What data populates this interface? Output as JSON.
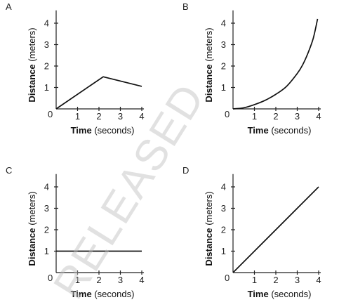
{
  "chart_data": [
    {
      "type": "line",
      "panel": "A",
      "xlabel_main": "Time",
      "xlabel_unit": "(seconds)",
      "ylabel_main": "Distance",
      "ylabel_unit": "(meters)",
      "xlim": [
        0,
        4
      ],
      "ylim": [
        0,
        4
      ],
      "x_ticks": [
        "1",
        "2",
        "3",
        "4"
      ],
      "y_ticks": [
        "1",
        "2",
        "3",
        "4"
      ],
      "origin_label": "0",
      "grid": false,
      "series": [
        {
          "x": [
            0,
            2.2,
            4
          ],
          "y": [
            0,
            1.5,
            1.05
          ]
        }
      ]
    },
    {
      "type": "line",
      "panel": "B",
      "xlabel_main": "Time",
      "xlabel_unit": "(seconds)",
      "ylabel_main": "Distance",
      "ylabel_unit": "(meters)",
      "xlim": [
        0,
        4
      ],
      "ylim": [
        0,
        4
      ],
      "x_ticks": [
        "1",
        "2",
        "3",
        "4"
      ],
      "y_ticks": [
        "1",
        "2",
        "3",
        "4"
      ],
      "origin_label": "0",
      "grid": false,
      "series": [
        {
          "x": [
            0,
            0.5,
            1,
            1.5,
            2,
            2.5,
            3,
            3.25,
            3.5,
            3.75,
            3.95
          ],
          "y": [
            0,
            0.05,
            0.2,
            0.4,
            0.68,
            1.05,
            1.65,
            2.05,
            2.6,
            3.3,
            4.2
          ]
        }
      ]
    },
    {
      "type": "line",
      "panel": "C",
      "xlabel_main": "Time",
      "xlabel_unit": "(seconds)",
      "ylabel_main": "Distance",
      "ylabel_unit": "(meters)",
      "xlim": [
        0,
        4
      ],
      "ylim": [
        0,
        4
      ],
      "x_ticks": [
        "1",
        "2",
        "3",
        "4"
      ],
      "y_ticks": [
        "1",
        "2",
        "3",
        "4"
      ],
      "origin_label": "0",
      "grid": false,
      "series": [
        {
          "x": [
            0,
            4
          ],
          "y": [
            1,
            1
          ]
        }
      ]
    },
    {
      "type": "line",
      "panel": "D",
      "xlabel_main": "Time",
      "xlabel_unit": "(seconds)",
      "ylabel_main": "Distance",
      "ylabel_unit": "(meters)",
      "xlim": [
        0,
        4
      ],
      "ylim": [
        0,
        4
      ],
      "x_ticks": [
        "1",
        "2",
        "3",
        "4"
      ],
      "y_ticks": [
        "1",
        "2",
        "3",
        "4"
      ],
      "origin_label": "0",
      "grid": false,
      "series": [
        {
          "x": [
            0,
            4
          ],
          "y": [
            0,
            4
          ]
        }
      ]
    }
  ],
  "watermark": "RELEASED"
}
